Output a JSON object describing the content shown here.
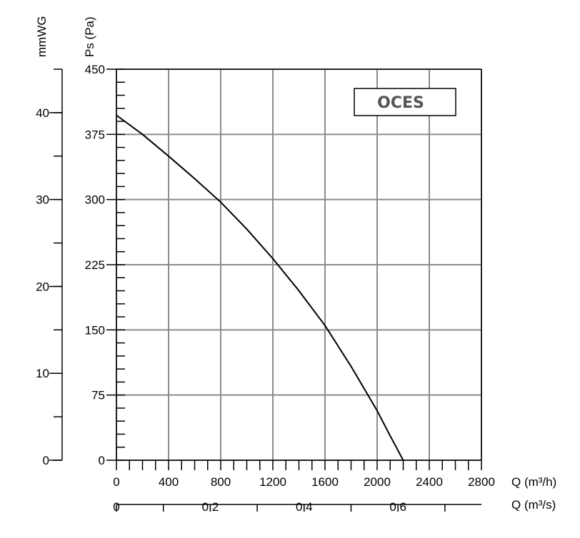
{
  "chart_data": {
    "type": "line",
    "legend": "OCES",
    "y_axis_left_title": "mmWG",
    "y_axis_right_title": "Ps (Pa)",
    "x_axis_title": "Q (m³/h)",
    "x2_axis_title": "Q (m³/s)",
    "x_ticks": [
      "0",
      "400",
      "800",
      "1200",
      "1600",
      "2000",
      "2400",
      "2800"
    ],
    "y_ticks": [
      "0",
      "75",
      "150",
      "225",
      "300",
      "375",
      "450"
    ],
    "mmwg_ticks": [
      "0",
      "10",
      "20",
      "30",
      "40"
    ],
    "x2_ticks": [
      "0",
      "0.2",
      "0.4",
      "0.6"
    ],
    "xlim": [
      0,
      2800
    ],
    "ylim": [
      0,
      450
    ],
    "mmwg_lim": [
      0,
      45
    ],
    "x2lim": [
      0,
      0.7778
    ],
    "grid": true,
    "series": [
      {
        "x": [
          0,
          200,
          400,
          600,
          800,
          1000,
          1200,
          1400,
          1600,
          1800,
          2000,
          2100,
          2200
        ],
        "y": [
          397,
          375,
          350,
          324,
          297,
          266,
          232,
          195,
          155,
          108,
          57,
          28,
          0
        ]
      }
    ]
  }
}
